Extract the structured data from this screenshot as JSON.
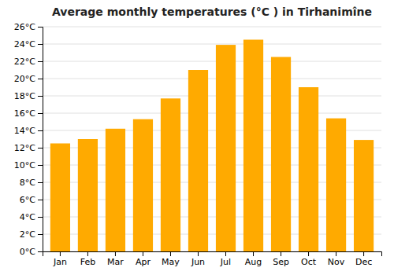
{
  "chart_data": {
    "type": "bar",
    "title": "Average monthly temperatures (°C ) in Tirhanimîne",
    "categories": [
      "Jan",
      "Feb",
      "Mar",
      "Apr",
      "May",
      "Jun",
      "Jul",
      "Aug",
      "Sep",
      "Oct",
      "Nov",
      "Dec"
    ],
    "values": [
      12.5,
      13.0,
      14.2,
      15.3,
      17.7,
      21.0,
      23.9,
      24.5,
      22.5,
      19.0,
      15.4,
      12.9
    ],
    "color": "#FFAA00",
    "ylim": [
      0,
      26
    ],
    "yticks": [
      {
        "value": 0,
        "label": "0°C"
      },
      {
        "value": 2,
        "label": "2°C"
      },
      {
        "value": 4,
        "label": "4°C"
      },
      {
        "value": 6,
        "label": "6°C"
      },
      {
        "value": 8,
        "label": "8°C"
      },
      {
        "value": 10,
        "label": "10°C"
      },
      {
        "value": 12,
        "label": "12°C"
      },
      {
        "value": 14,
        "label": "14°C"
      },
      {
        "value": 16,
        "label": "16°C"
      },
      {
        "value": 18,
        "label": "18°C"
      },
      {
        "value": 20,
        "label": "20°C"
      },
      {
        "value": 22,
        "label": "22°C"
      },
      {
        "value": 24,
        "label": "24°C"
      },
      {
        "value": 26,
        "label": "26°C"
      }
    ],
    "grid": true
  }
}
